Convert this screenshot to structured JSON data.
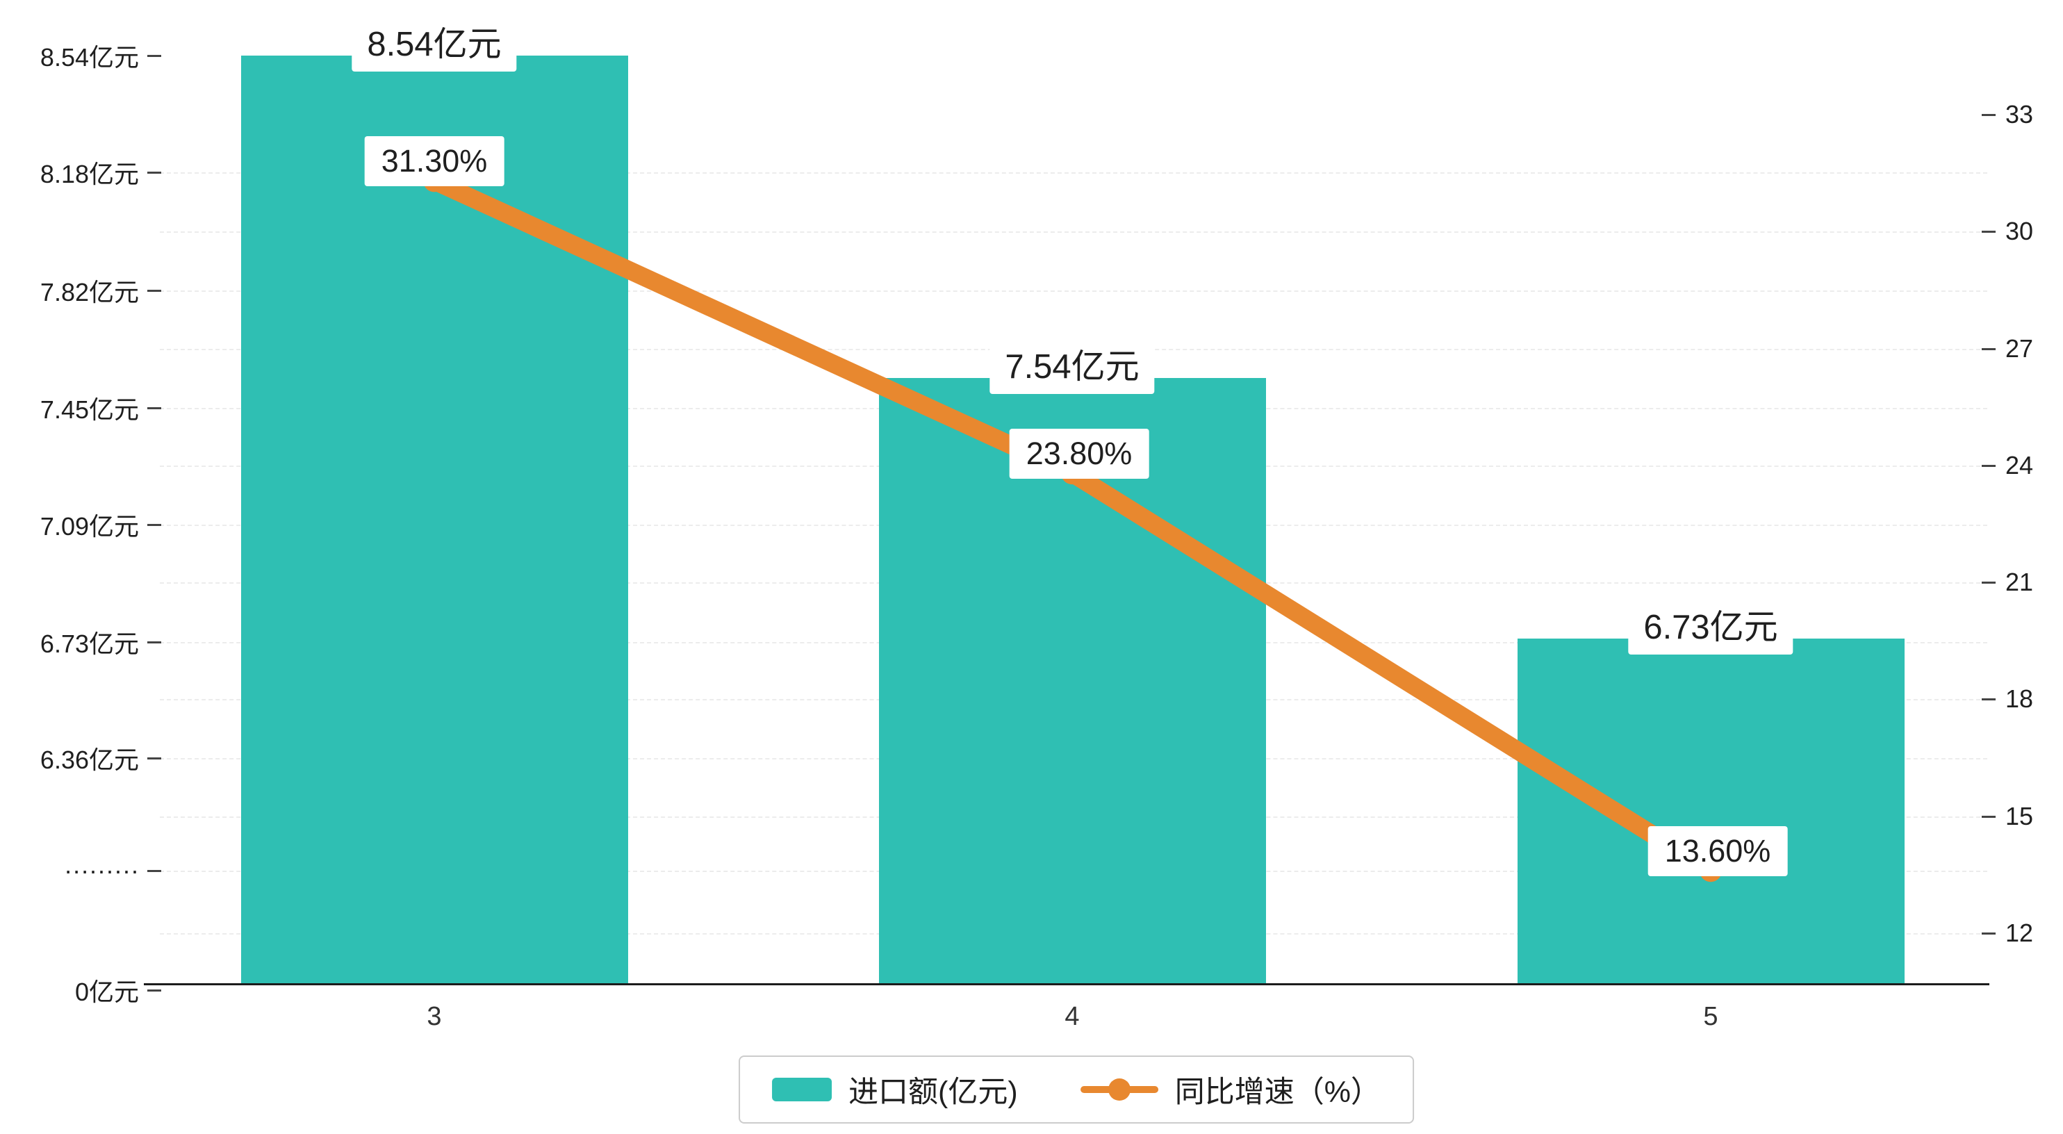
{
  "chart_data": {
    "type": "bar",
    "categories": [
      "3",
      "4",
      "5"
    ],
    "series": [
      {
        "name": "进口额(亿元)",
        "type": "bar",
        "values": [
          8.54,
          7.54,
          6.73
        ],
        "labels": [
          "8.54亿元",
          "7.54亿元",
          "6.73亿元"
        ],
        "color": "#2fbfb3"
      },
      {
        "name": "同比增速（%）",
        "type": "line",
        "values": [
          31.3,
          23.8,
          13.6
        ],
        "labels": [
          "31.30%",
          "23.80%",
          "13.60%"
        ],
        "color": "#e8882f"
      }
    ],
    "title": "",
    "xlabel": "",
    "ylabel": "",
    "left_axis": {
      "ticks": [
        "8.54亿元",
        "8.18亿元",
        "7.82亿元",
        "7.45亿元",
        "7.09亿元",
        "6.73亿元",
        "6.36亿元",
        "·········",
        "0亿元"
      ],
      "broken_axis": true
    },
    "right_axis": {
      "ticks": [
        "33",
        "30",
        "27",
        "24",
        "21",
        "18",
        "15",
        "12"
      ],
      "range": [
        12,
        33
      ]
    },
    "grid": true,
    "legend_position": "bottom"
  },
  "legend": {
    "items": [
      {
        "label": "进口额(亿元)",
        "swatch": "bar",
        "color": "#2fbfb3"
      },
      {
        "label": "同比增速（%）",
        "swatch": "line",
        "color": "#e8882f"
      }
    ]
  }
}
